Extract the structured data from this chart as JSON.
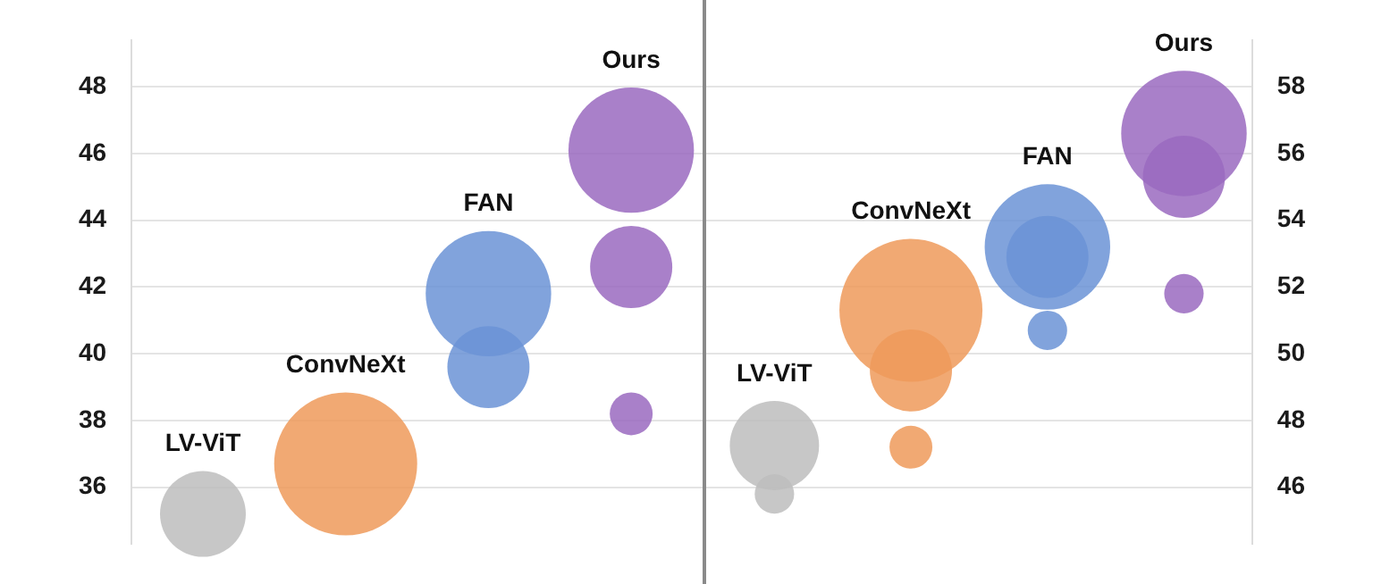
{
  "chart_data": [
    {
      "type": "bubble",
      "categories": [
        "LV-ViT",
        "ConvNeXt",
        "FAN",
        "Ours"
      ],
      "ylim": [
        34.3,
        49.4
      ],
      "yticks": [
        36,
        38,
        40,
        42,
        44,
        46,
        48
      ],
      "grid": "y",
      "series": [
        {
          "colors": [
            "#bdbdbd",
            "#ee9a5a",
            "#6b93d6",
            "#9a6abf"
          ],
          "values": [
            35.2,
            36.7,
            41.8,
            46.1
          ],
          "sizes": [
            0.36,
            1,
            0.77,
            0.77
          ]
        },
        {
          "colors": [
            "#bdbdbd",
            "#ee9a5a",
            "#6b93d6",
            "#9a6abf"
          ],
          "values": [
            null,
            null,
            39.6,
            42.6
          ],
          "sizes": [
            null,
            null,
            0.33,
            0.33
          ]
        },
        {
          "colors": [
            "#bdbdbd",
            "#ee9a5a",
            "#6b93d6",
            "#9a6abf"
          ],
          "values": [
            null,
            null,
            null,
            38.2
          ],
          "sizes": [
            null,
            null,
            null,
            0.09
          ]
        }
      ]
    },
    {
      "type": "bubble",
      "categories": [
        "LV-ViT",
        "ConvNeXt",
        "FAN",
        "Ours"
      ],
      "y2lim": [
        44.3,
        59.4
      ],
      "y2ticks": [
        46,
        48,
        50,
        52,
        54,
        56,
        58
      ],
      "grid": "y",
      "series": [
        {
          "axis": "y2",
          "colors": [
            "#bdbdbd",
            "#ee9a5a",
            "#6b93d6",
            "#9a6abf"
          ],
          "values": [
            47.25,
            51.3,
            53.2,
            56.6
          ],
          "sizes": [
            0.39,
            1,
            0.77,
            0.77
          ]
        },
        {
          "axis": "y2",
          "colors": [
            "#bdbdbd",
            "#ee9a5a",
            "#6b93d6",
            "#9a6abf"
          ],
          "values": [
            45.8,
            49.5,
            52.9,
            55.3
          ],
          "sizes": [
            0.076,
            0.33,
            0.33,
            0.33
          ]
        },
        {
          "axis": "y2",
          "colors": [
            "#bdbdbd",
            "#ee9a5a",
            "#6b93d6",
            "#9a6abf"
          ],
          "values": [
            null,
            47.2,
            50.7,
            51.8
          ],
          "sizes": [
            null,
            0.09,
            0.076,
            0.076
          ]
        }
      ]
    }
  ]
}
